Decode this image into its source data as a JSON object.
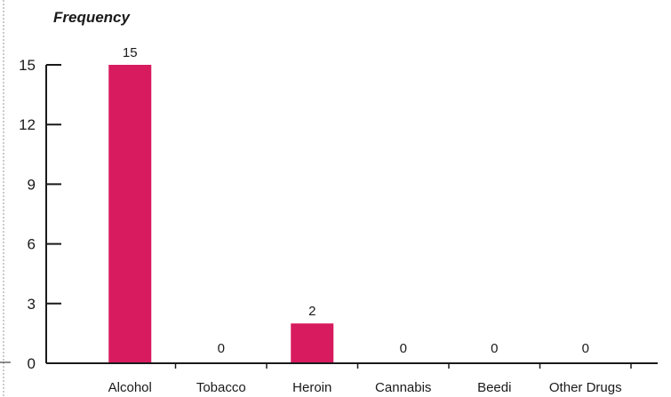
{
  "chart_data": {
    "type": "bar",
    "ylabel": "Frequency",
    "xlabel": "",
    "categories": [
      "Alcohol",
      "Tobacco",
      "Heroin",
      "Cannabis",
      "Beedi",
      "Other Drugs"
    ],
    "values": [
      15,
      0,
      2,
      0,
      0,
      0
    ],
    "data_labels": [
      "15",
      "0",
      "2",
      "0",
      "0",
      "0"
    ],
    "yticks": [
      0,
      3,
      6,
      9,
      12,
      15
    ],
    "ylim": [
      0,
      15
    ],
    "grid": false,
    "bar_color": "#d81b5e",
    "axis_color": "#1a1a1a"
  }
}
